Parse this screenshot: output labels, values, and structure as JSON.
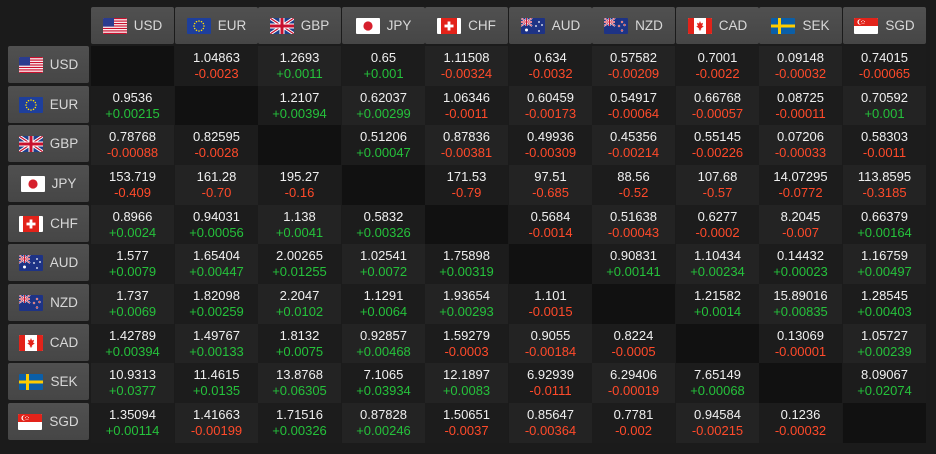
{
  "colors": {
    "up": "#25c13b",
    "down": "#ff4a2a"
  },
  "currencies": [
    {
      "code": "USD",
      "icon": "us-flag-icon"
    },
    {
      "code": "EUR",
      "icon": "eu-flag-icon"
    },
    {
      "code": "GBP",
      "icon": "uk-flag-icon"
    },
    {
      "code": "JPY",
      "icon": "japan-flag-icon"
    },
    {
      "code": "CHF",
      "icon": "swiss-flag-icon"
    },
    {
      "code": "AUD",
      "icon": "australia-flag-icon"
    },
    {
      "code": "NZD",
      "icon": "new-zealand-flag-icon"
    },
    {
      "code": "CAD",
      "icon": "canada-flag-icon"
    },
    {
      "code": "SEK",
      "icon": "sweden-flag-icon"
    },
    {
      "code": "SGD",
      "icon": "singapore-flag-icon"
    }
  ],
  "rows": [
    [
      null,
      [
        "1.04863",
        "-0.0023"
      ],
      [
        "1.2693",
        "+0.0011"
      ],
      [
        "0.65",
        "+0.001"
      ],
      [
        "1.11508",
        "-0.00324"
      ],
      [
        "0.634",
        "-0.0032"
      ],
      [
        "0.57582",
        "-0.00209"
      ],
      [
        "0.7001",
        "-0.0022"
      ],
      [
        "0.09148",
        "-0.00032"
      ],
      [
        "0.74015",
        "-0.00065"
      ]
    ],
    [
      [
        "0.9536",
        "+0.00215"
      ],
      null,
      [
        "1.2107",
        "+0.00394"
      ],
      [
        "0.62037",
        "+0.00299"
      ],
      [
        "1.06346",
        "-0.0011"
      ],
      [
        "0.60459",
        "-0.00173"
      ],
      [
        "0.54917",
        "-0.00064"
      ],
      [
        "0.66768",
        "-0.00057"
      ],
      [
        "0.08725",
        "-0.00011"
      ],
      [
        "0.70592",
        "+0.001"
      ]
    ],
    [
      [
        "0.78768",
        "-0.00088"
      ],
      [
        "0.82595",
        "-0.0028"
      ],
      null,
      [
        "0.51206",
        "+0.00047"
      ],
      [
        "0.87836",
        "-0.00381"
      ],
      [
        "0.49936",
        "-0.00309"
      ],
      [
        "0.45356",
        "-0.00214"
      ],
      [
        "0.55145",
        "-0.00226"
      ],
      [
        "0.07206",
        "-0.00033"
      ],
      [
        "0.58303",
        "-0.0011"
      ]
    ],
    [
      [
        "153.719",
        "-0.409"
      ],
      [
        "161.28",
        "-0.70"
      ],
      [
        "195.27",
        "-0.16"
      ],
      null,
      [
        "171.53",
        "-0.79"
      ],
      [
        "97.51",
        "-0.685"
      ],
      [
        "88.56",
        "-0.52"
      ],
      [
        "107.68",
        "-0.57"
      ],
      [
        "14.07295",
        "-0.0772"
      ],
      [
        "113.8595",
        "-0.3185"
      ]
    ],
    [
      [
        "0.8966",
        "+0.0024"
      ],
      [
        "0.94031",
        "+0.00056"
      ],
      [
        "1.138",
        "+0.0041"
      ],
      [
        "0.5832",
        "+0.00326"
      ],
      null,
      [
        "0.5684",
        "-0.0014"
      ],
      [
        "0.51638",
        "-0.00043"
      ],
      [
        "0.6277",
        "-0.0002"
      ],
      [
        "8.2045",
        "-0.007"
      ],
      [
        "0.66379",
        "+0.00164"
      ]
    ],
    [
      [
        "1.577",
        "+0.0079"
      ],
      [
        "1.65404",
        "+0.00447"
      ],
      [
        "2.00265",
        "+0.01255"
      ],
      [
        "1.02541",
        "+0.0072"
      ],
      [
        "1.75898",
        "+0.00319"
      ],
      null,
      [
        "0.90831",
        "+0.00141"
      ],
      [
        "1.10434",
        "+0.00234"
      ],
      [
        "0.14432",
        "+0.00023"
      ],
      [
        "1.16759",
        "+0.00497"
      ]
    ],
    [
      [
        "1.737",
        "+0.0069"
      ],
      [
        "1.82098",
        "+0.00259"
      ],
      [
        "2.2047",
        "+0.0102"
      ],
      [
        "1.1291",
        "+0.0064"
      ],
      [
        "1.93654",
        "+0.00293"
      ],
      [
        "1.101",
        "-0.0015"
      ],
      null,
      [
        "1.21582",
        "+0.0014"
      ],
      [
        "15.89016",
        "+0.00835"
      ],
      [
        "1.28545",
        "+0.00403"
      ]
    ],
    [
      [
        "1.42789",
        "+0.00394"
      ],
      [
        "1.49767",
        "+0.00133"
      ],
      [
        "1.8132",
        "+0.0075"
      ],
      [
        "0.92857",
        "+0.00468"
      ],
      [
        "1.59279",
        "-0.0003"
      ],
      [
        "0.9055",
        "-0.00184"
      ],
      [
        "0.8224",
        "-0.0005"
      ],
      null,
      [
        "0.13069",
        "-0.00001"
      ],
      [
        "1.05727",
        "+0.00239"
      ]
    ],
    [
      [
        "10.9313",
        "+0.0377"
      ],
      [
        "11.4615",
        "+0.0135"
      ],
      [
        "13.8768",
        "+0.06305"
      ],
      [
        "7.1065",
        "+0.03934"
      ],
      [
        "12.1897",
        "+0.0083"
      ],
      [
        "6.92939",
        "-0.0111"
      ],
      [
        "6.29406",
        "-0.00019"
      ],
      [
        "7.65149",
        "+0.00068"
      ],
      null,
      [
        "8.09067",
        "+0.02074"
      ]
    ],
    [
      [
        "1.35094",
        "+0.00114"
      ],
      [
        "1.41663",
        "-0.00199"
      ],
      [
        "1.71516",
        "+0.00326"
      ],
      [
        "0.87828",
        "+0.00246"
      ],
      [
        "1.50651",
        "-0.0037"
      ],
      [
        "0.85647",
        "-0.00364"
      ],
      [
        "0.7781",
        "-0.002"
      ],
      [
        "0.94584",
        "-0.00215"
      ],
      [
        "0.1236",
        "-0.00032"
      ],
      null
    ]
  ]
}
